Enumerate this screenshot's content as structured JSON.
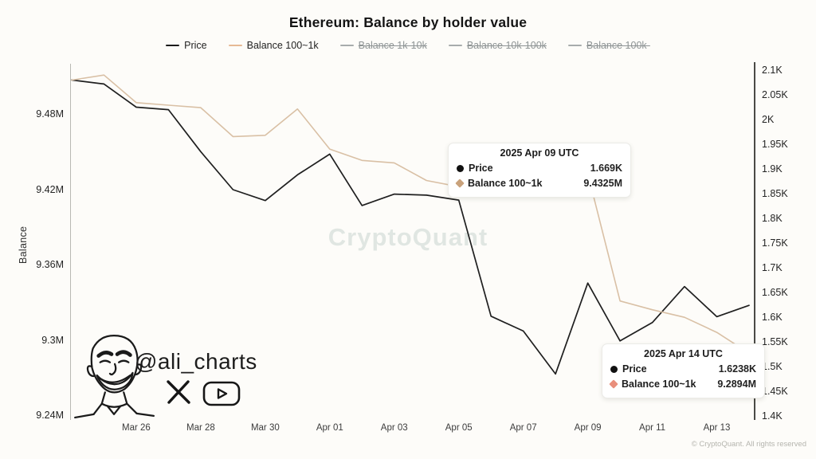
{
  "title": "Ethereum: Balance by holder value",
  "watermark": "CryptoQuant",
  "copyright": "© CryptoQuant. All rights reserved",
  "branding": {
    "handle": "@ali_charts",
    "icons": [
      "x-twitter-icon",
      "youtube-icon",
      "face-sketch"
    ]
  },
  "legend": {
    "items": [
      {
        "label": "Price",
        "color": "#1b1b1b",
        "disabled": false
      },
      {
        "label": "Balance 100~1k",
        "color": "#e6b995",
        "disabled": false
      },
      {
        "label": "Balance 1k-10k",
        "color": "#a7acac",
        "disabled": true
      },
      {
        "label": "Balance 10k-100k",
        "color": "#a7acac",
        "disabled": true
      },
      {
        "label": "Balance 100k-",
        "color": "#a7acac",
        "disabled": true
      }
    ]
  },
  "left_axis": {
    "title": "Balance",
    "ticks": [
      {
        "label": "9.48M",
        "value": 9.48
      },
      {
        "label": "9.42M",
        "value": 9.42
      },
      {
        "label": "9.36M",
        "value": 9.36
      },
      {
        "label": "9.3M",
        "value": 9.3
      },
      {
        "label": "9.24M",
        "value": 9.24
      }
    ]
  },
  "right_axis": {
    "ticks": [
      {
        "label": "2.1K",
        "value": 2.1
      },
      {
        "label": "2.05K",
        "value": 2.05
      },
      {
        "label": "2K",
        "value": 2.0
      },
      {
        "label": "1.95K",
        "value": 1.95
      },
      {
        "label": "1.9K",
        "value": 1.9
      },
      {
        "label": "1.85K",
        "value": 1.85
      },
      {
        "label": "1.8K",
        "value": 1.8
      },
      {
        "label": "1.75K",
        "value": 1.75
      },
      {
        "label": "1.7K",
        "value": 1.7
      },
      {
        "label": "1.65K",
        "value": 1.65
      },
      {
        "label": "1.6K",
        "value": 1.6
      },
      {
        "label": "1.55K",
        "value": 1.55
      },
      {
        "label": "1.5K",
        "value": 1.5
      },
      {
        "label": "1.45K",
        "value": 1.45
      },
      {
        "label": "1.4K",
        "value": 1.4
      }
    ]
  },
  "x_axis": {
    "ticks": [
      {
        "label": "Mar 26",
        "index": 2
      },
      {
        "label": "Mar 28",
        "index": 4
      },
      {
        "label": "Mar 30",
        "index": 6
      },
      {
        "label": "Apr 01",
        "index": 8
      },
      {
        "label": "Apr 03",
        "index": 10
      },
      {
        "label": "Apr 05",
        "index": 12
      },
      {
        "label": "Apr 07",
        "index": 14
      },
      {
        "label": "Apr 09",
        "index": 16
      },
      {
        "label": "Apr 11",
        "index": 18
      },
      {
        "label": "Apr 13",
        "index": 20
      }
    ]
  },
  "chart_data": {
    "type": "line",
    "title": "Ethereum: Balance by holder value",
    "x": [
      "Mar 24",
      "Mar 25",
      "Mar 26",
      "Mar 27",
      "Mar 28",
      "Mar 29",
      "Mar 30",
      "Mar 31",
      "Apr 01",
      "Apr 02",
      "Apr 03",
      "Apr 04",
      "Apr 05",
      "Apr 06",
      "Apr 07",
      "Apr 08",
      "Apr 09",
      "Apr 10",
      "Apr 11",
      "Apr 12",
      "Apr 13",
      "Apr 14"
    ],
    "series": [
      {
        "name": "Price",
        "axis": "right",
        "unit": "K",
        "color": "#1f1f1f",
        "values": [
          2.08,
          2.072,
          2.025,
          2.02,
          1.935,
          1.858,
          1.836,
          1.888,
          1.93,
          1.826,
          1.849,
          1.847,
          1.837,
          1.602,
          1.572,
          1.485,
          1.669,
          1.552,
          1.589,
          1.662,
          1.601,
          1.6238
        ]
      },
      {
        "name": "Balance 100~1k",
        "axis": "left",
        "unit": "M",
        "color": "#d9c0a5",
        "values": [
          9.507,
          9.511,
          9.489,
          9.487,
          9.485,
          9.462,
          9.463,
          9.484,
          9.452,
          9.443,
          9.441,
          9.427,
          9.422,
          9.42,
          9.417,
          9.414,
          9.4325,
          9.331,
          9.324,
          9.318,
          9.306,
          9.2894
        ]
      }
    ],
    "left_axis_range": [
      9.24,
      9.48
    ],
    "right_axis_range": [
      1.4,
      2.1
    ],
    "legend_position": "top",
    "grid": false
  },
  "tooltips": [
    {
      "title": "2025 Apr 09 UTC",
      "rows": [
        {
          "marker": "circle",
          "color": "#111111",
          "label": "Price",
          "value": "1.669K"
        },
        {
          "marker": "diamond",
          "color": "#c9a27c",
          "label": "Balance 100~1k",
          "value": "9.4325M"
        }
      ]
    },
    {
      "title": "2025 Apr 14 UTC",
      "rows": [
        {
          "marker": "circle",
          "color": "#111111",
          "label": "Price",
          "value": "1.6238K"
        },
        {
          "marker": "diamond",
          "color": "#e98f7c",
          "label": "Balance 100~1k",
          "value": "9.2894M"
        }
      ]
    }
  ]
}
